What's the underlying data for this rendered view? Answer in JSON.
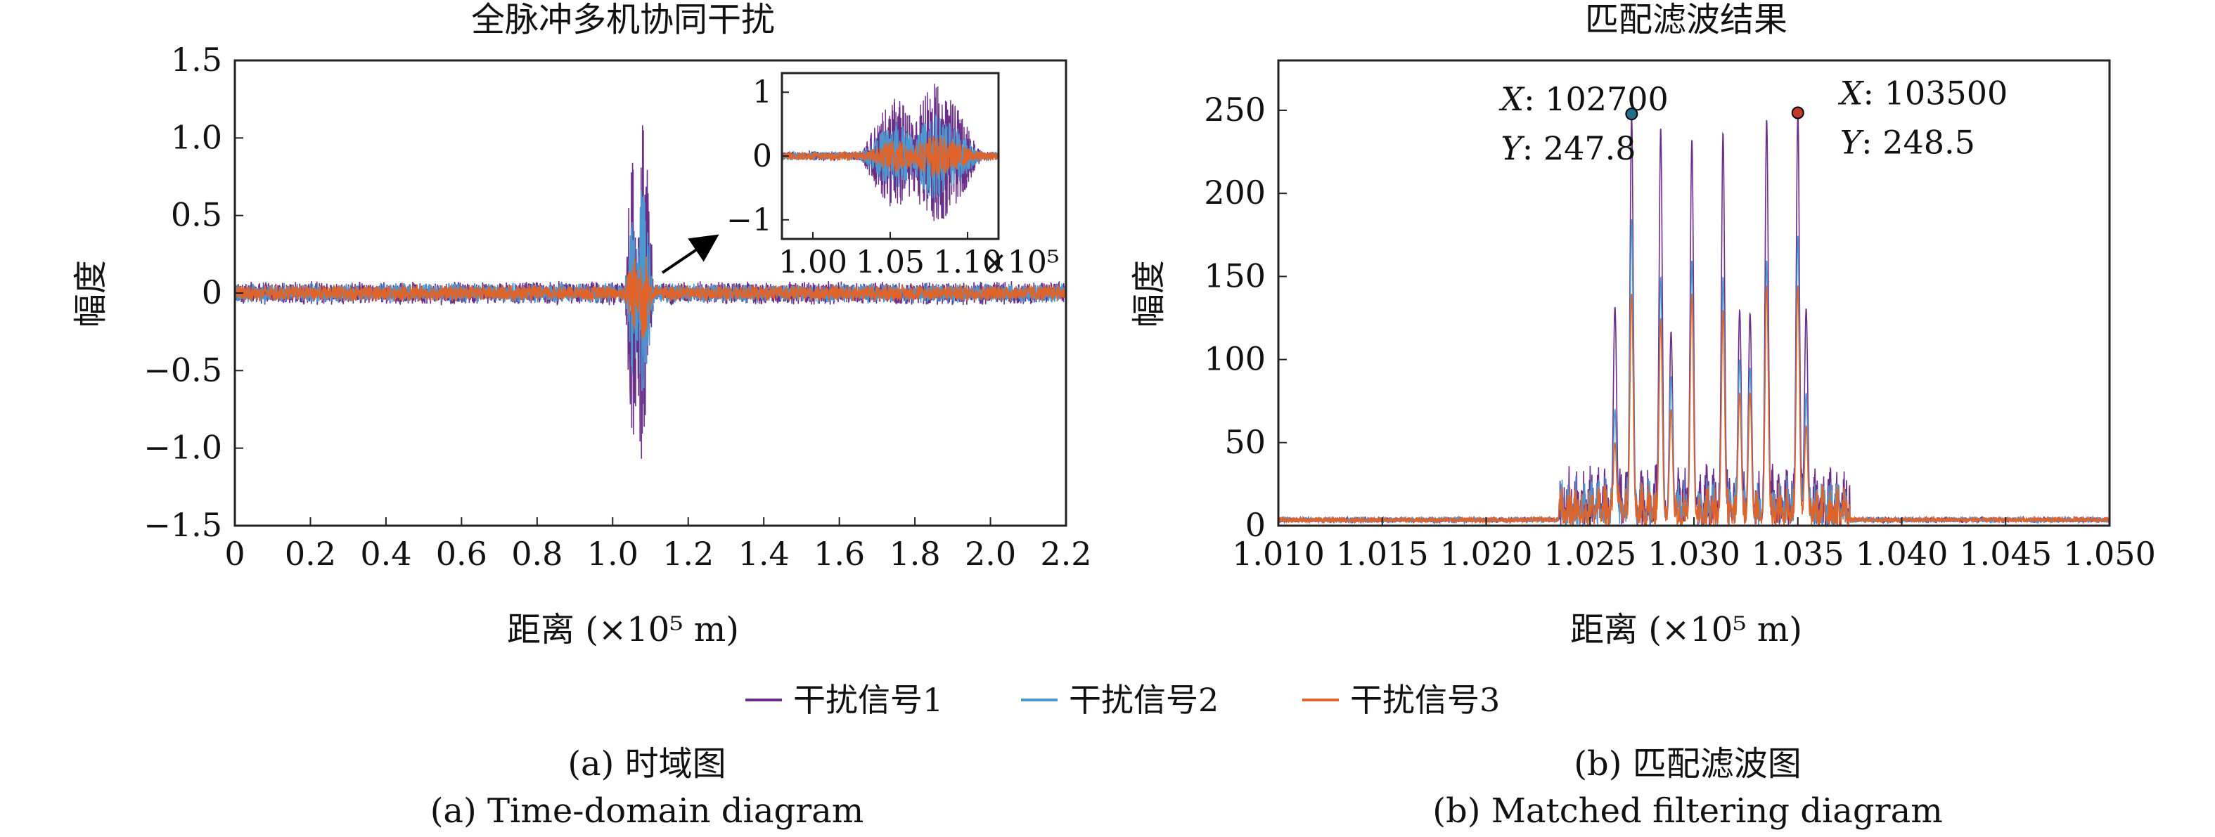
{
  "colors": {
    "series1": "#6b2d8a",
    "series2": "#4d97cf",
    "series3": "#e0642a",
    "marker_left": "#1f6f8b",
    "marker_right": "#c0392b",
    "axis": "#222222"
  },
  "chart_data": [
    {
      "type": "line",
      "title": "全脉冲多机协同干扰",
      "xlabel": "距离 (×10⁵ m)",
      "ylabel": "幅度",
      "xlim": [
        0,
        2.2
      ],
      "ylim": [
        -1.5,
        1.5
      ],
      "x_ticks": [
        "0",
        "0.2",
        "0.4",
        "0.6",
        "0.8",
        "1.0",
        "1.2",
        "1.4",
        "1.6",
        "1.8",
        "2.0",
        "2.2"
      ],
      "y_ticks": [
        "1.5",
        "1.0",
        "0.5",
        "0",
        "−0.5",
        "−1.0",
        "−1.5"
      ],
      "grid": false,
      "noise_floor_amplitude": 0.08,
      "burst": {
        "x_start": 1.03,
        "x_end": 1.11,
        "gap_center": 1.065
      },
      "series": [
        {
          "name": "干扰信号1",
          "peak_amplitude": 1.22
        },
        {
          "name": "干扰信号2",
          "peak_amplitude": 0.72
        },
        {
          "name": "干扰信号3",
          "peak_amplitude": 0.35
        }
      ],
      "inset": {
        "xlim": [
          0.98,
          1.12
        ],
        "ylim": [
          -1.3,
          1.3
        ],
        "x_ticks": [
          "1.00",
          "1.05",
          "1.10"
        ],
        "x_multiplier": "×10⁵",
        "y_ticks": [
          "1",
          "0",
          "−1"
        ]
      }
    },
    {
      "type": "line",
      "title": "匹配滤波结果",
      "xlabel": "距离 (×10⁵ m)",
      "ylabel": "幅度",
      "xlim": [
        1.01,
        1.05
      ],
      "ylim": [
        0,
        280
      ],
      "x_ticks": [
        "1.010",
        "1.015",
        "1.020",
        "1.025",
        "1.030",
        "1.035",
        "1.040",
        "1.045",
        "1.050"
      ],
      "y_ticks": [
        "250",
        "200",
        "150",
        "100",
        "50",
        "0"
      ],
      "grid": false,
      "peaks_x": [
        1.0262,
        1.027,
        1.0284,
        1.0289,
        1.0299,
        1.0314,
        1.0322,
        1.0327,
        1.0335,
        1.035,
        1.0354
      ],
      "series": [
        {
          "name": "干扰信号1",
          "peaks_y": [
            132,
            247.8,
            240,
            117,
            233,
            237,
            130,
            128,
            245,
            248.5,
            131
          ]
        },
        {
          "name": "干扰信号2",
          "peaks_y": [
            70,
            185,
            150,
            90,
            160,
            150,
            100,
            95,
            160,
            175,
            80
          ]
        },
        {
          "name": "干扰信号3",
          "peaks_y": [
            50,
            140,
            125,
            70,
            140,
            130,
            80,
            80,
            145,
            145,
            60
          ]
        }
      ],
      "datatips": [
        {
          "x": 102700,
          "y": 247.8,
          "x_label": "X",
          "x_value": "102700",
          "y_label": "Y",
          "y_value": "247.8"
        },
        {
          "x": 103500,
          "y": 248.5,
          "x_label": "X",
          "x_value": "103500",
          "y_label": "Y",
          "y_value": "248.5"
        }
      ]
    }
  ],
  "legend": {
    "entries": [
      "干扰信号1",
      "干扰信号2",
      "干扰信号3"
    ],
    "placement": "bottom-center"
  },
  "captions": {
    "a_cn": "(a) 时域图",
    "a_en": "(a) Time-domain diagram",
    "b_cn": "(b) 匹配滤波图",
    "b_en": "(b) Matched filtering diagram"
  }
}
